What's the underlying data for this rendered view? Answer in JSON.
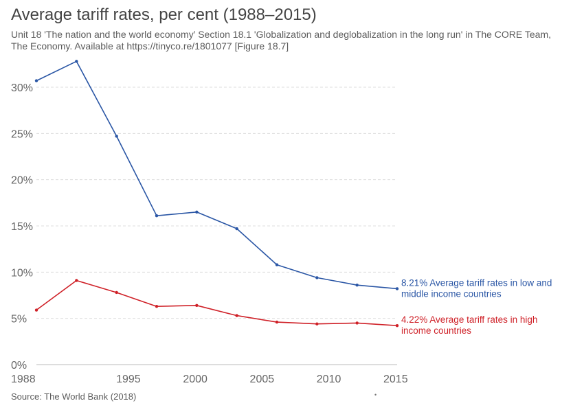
{
  "header": {
    "title": "Average tariff rates, per cent (1988–2015)",
    "subtitle": "Unit 18 'The nation and the world economy’ Section 18.1 'Globalization and deglobalization in the long run' in The CORE Team, The Economy. Available at https://tinyco.re/1801077 [Figure 18.7]"
  },
  "footer": {
    "source": "Source: The World Bank (2018)",
    "dot": "•"
  },
  "chart_data": {
    "type": "line",
    "title": "Average tariff rates, per cent (1988–2015)",
    "xlabel": "",
    "ylabel": "",
    "xlim": [
      1988,
      2015
    ],
    "ylim": [
      0,
      30
    ],
    "x_ticks": [
      1988,
      1995,
      2000,
      2005,
      2010,
      2015
    ],
    "y_ticks": [
      0,
      5,
      10,
      15,
      20,
      25,
      30
    ],
    "y_tick_format": "%",
    "grid": true,
    "series": [
      {
        "name": "Average tariff rates in low and middle income countries",
        "color": "#2a56a5",
        "end_label_lines": [
          "8.21% Average tariff rates in low and",
          "middle income countries"
        ],
        "points": [
          [
            1988,
            30.7
          ],
          [
            1991,
            32.8
          ],
          [
            1994,
            24.7
          ],
          [
            1997,
            16.1
          ],
          [
            2000,
            16.5
          ],
          [
            2003,
            14.7
          ],
          [
            2006,
            10.8
          ],
          [
            2009,
            9.4
          ],
          [
            2012,
            8.6
          ],
          [
            2015,
            8.21
          ]
        ]
      },
      {
        "name": "Average tariff rates in high income countries",
        "color": "#cf2027",
        "end_label_lines": [
          "4.22% Average tariff rates in high",
          "income countries"
        ],
        "points": [
          [
            1988,
            5.9
          ],
          [
            1991,
            9.1
          ],
          [
            1994,
            7.8
          ],
          [
            1997,
            6.3
          ],
          [
            2000,
            6.4
          ],
          [
            2003,
            5.3
          ],
          [
            2006,
            4.6
          ],
          [
            2009,
            4.4
          ],
          [
            2012,
            4.5
          ],
          [
            2015,
            4.22
          ]
        ]
      }
    ]
  }
}
